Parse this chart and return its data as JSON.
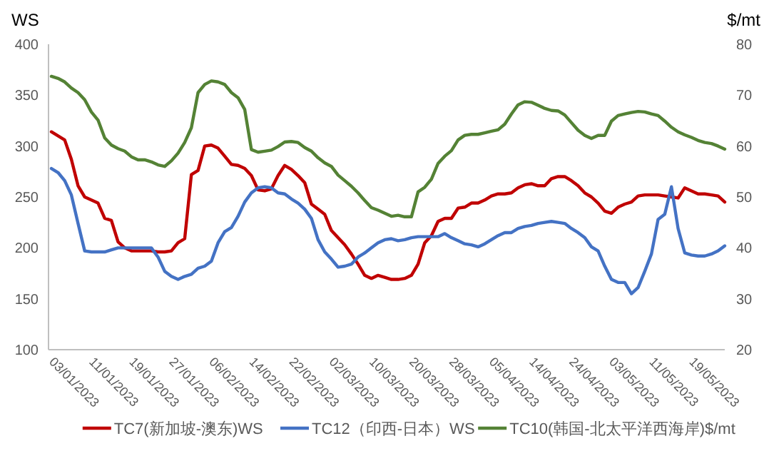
{
  "chart_data": {
    "type": "line",
    "xlabel": null,
    "ylabel": "WS",
    "y2label": "$/mt",
    "categories": [
      "03/01/2023",
      null,
      null,
      null,
      null,
      null,
      "11/01/2023",
      null,
      null,
      null,
      null,
      null,
      "19/01/2023",
      null,
      null,
      null,
      null,
      null,
      "27/01/2023",
      null,
      null,
      null,
      null,
      null,
      "06/02/2023",
      null,
      null,
      null,
      null,
      null,
      "14/02/2023",
      null,
      null,
      null,
      null,
      null,
      "22/02/2023",
      null,
      null,
      null,
      null,
      null,
      "02/03/2023",
      null,
      null,
      null,
      null,
      null,
      "10/03/2023",
      null,
      null,
      null,
      null,
      null,
      "20/03/2023",
      null,
      null,
      null,
      null,
      null,
      "28/03/2023",
      null,
      null,
      null,
      null,
      null,
      "05/04/2023",
      null,
      null,
      null,
      null,
      null,
      "14/04/2023",
      null,
      null,
      null,
      null,
      null,
      "24/04/2023",
      null,
      null,
      null,
      null,
      null,
      "03/05/2023",
      null,
      null,
      null,
      null,
      null,
      "11/05/2023",
      null,
      null,
      null,
      null,
      null,
      "19/05/2023",
      null,
      null,
      null,
      null,
      null
    ],
    "ylim": [
      100,
      400
    ],
    "yticks": [
      100,
      150,
      200,
      250,
      300,
      350,
      400
    ],
    "y2lim": [
      20,
      80
    ],
    "y2ticks": [
      20,
      30,
      40,
      50,
      60,
      70,
      80
    ],
    "grid": false,
    "legend": "bottom",
    "marker": "none",
    "line_style": "solid",
    "series": [
      {
        "name": "TC7(新加坡-澳东)WS",
        "color": "#c00000",
        "values": [
          314,
          310,
          306,
          287,
          261,
          250,
          247,
          244,
          229,
          227,
          206,
          200,
          197,
          197,
          197,
          197,
          196,
          196,
          197,
          205,
          209,
          272,
          276,
          300,
          301,
          298,
          290,
          282,
          281,
          278,
          271,
          257,
          256,
          258,
          271,
          281,
          277,
          271,
          264,
          243,
          238,
          233,
          217,
          210,
          203,
          194,
          184,
          173,
          170,
          173,
          171,
          169,
          169,
          170,
          173,
          184,
          205,
          212,
          226,
          229,
          229,
          239,
          240,
          244,
          244,
          247,
          251,
          253,
          253,
          254,
          259,
          262,
          263,
          261,
          261,
          268,
          270,
          270,
          266,
          261,
          254,
          250,
          244,
          236,
          234,
          240,
          243,
          245,
          251,
          252,
          252,
          252,
          251,
          250,
          249,
          259,
          256,
          253,
          253,
          252,
          251,
          245
        ]
      },
      {
        "name": "TC12（印西-日本）WS",
        "color": "#4472c4",
        "values": [
          278,
          274,
          266,
          252,
          224,
          197,
          196,
          196,
          196,
          198,
          200,
          200,
          200,
          200,
          200,
          200,
          191,
          177,
          172,
          169,
          172,
          174,
          180,
          182,
          187,
          205,
          216,
          220,
          231,
          245,
          254,
          259,
          260,
          259,
          254,
          253,
          248,
          244,
          238,
          229,
          208,
          196,
          189,
          181,
          182,
          184,
          191,
          195,
          200,
          205,
          208,
          209,
          207,
          208,
          210,
          211,
          211,
          211,
          211,
          214,
          210,
          207,
          204,
          203,
          201,
          204,
          208,
          212,
          215,
          215,
          219,
          221,
          222,
          224,
          225,
          226,
          225,
          224,
          219,
          215,
          210,
          201,
          197,
          182,
          169,
          166,
          166,
          155,
          161,
          177,
          194,
          228,
          233,
          260,
          219,
          195,
          193,
          192,
          192,
          194,
          197,
          202
        ]
      },
      {
        "name": "TC10(韩国-北太平洋西海岸)$/mt",
        "color": "#548235",
        "axis": "y2",
        "values": [
          73.7,
          73.3,
          72.6,
          71.4,
          70.5,
          69.1,
          66.7,
          65.1,
          61.6,
          60.2,
          59.5,
          59.0,
          57.9,
          57.3,
          57.3,
          56.9,
          56.3,
          56.0,
          57.1,
          58.6,
          60.7,
          63.6,
          70.5,
          72.1,
          72.8,
          72.6,
          72.1,
          70.5,
          69.5,
          67.2,
          59.3,
          58.8,
          59.0,
          59.2,
          59.9,
          60.8,
          60.9,
          60.7,
          59.7,
          59.0,
          57.7,
          56.7,
          56.0,
          54.3,
          53.2,
          52.1,
          50.8,
          49.3,
          47.9,
          47.4,
          46.8,
          46.2,
          46.4,
          46.1,
          46.1,
          51.0,
          51.9,
          53.5,
          56.6,
          58.0,
          59.1,
          61.2,
          62.1,
          62.3,
          62.3,
          62.6,
          62.9,
          63.2,
          64.3,
          66.3,
          68.1,
          68.7,
          68.6,
          68.0,
          67.4,
          67.0,
          66.9,
          66.1,
          64.6,
          63.1,
          62.1,
          61.5,
          62.1,
          62.1,
          64.9,
          66.0,
          66.3,
          66.6,
          66.8,
          66.7,
          66.3,
          66.0,
          64.9,
          63.7,
          62.8,
          62.2,
          61.7,
          61.1,
          60.7,
          60.5,
          60.0,
          59.4
        ]
      }
    ]
  }
}
